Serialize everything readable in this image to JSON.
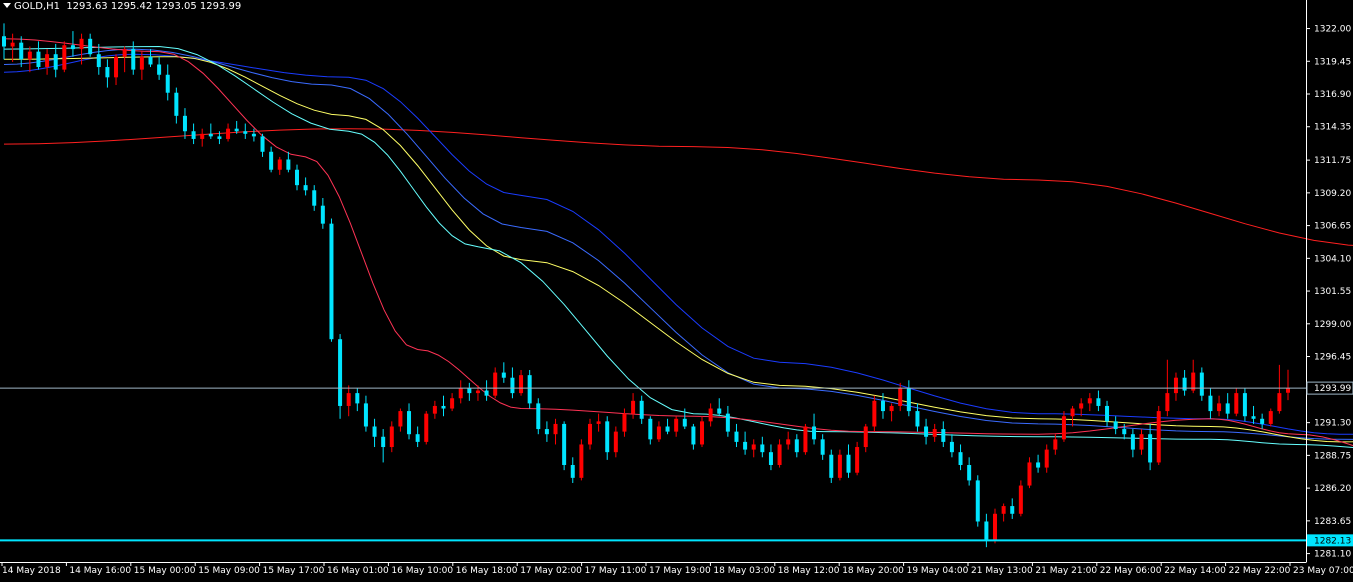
{
  "header": {
    "symbol": "GOLD,H1",
    "ohlc": "1293.63 1295.42 1293.05 1293.99"
  },
  "colors": {
    "background": "#000000",
    "bull": "#ff0000",
    "bear": "#00e5ff",
    "ma_red": "#ff2020",
    "ma_blue1": "#1a3cff",
    "ma_blue2": "#3a6bff",
    "ma_yellow": "#ffff66",
    "ma_cyan": "#66ffff",
    "ma_pink": "#ff3355",
    "current_line": "#9fb7c7",
    "hline": "#00e5ff"
  },
  "price_axis": {
    "ticks": [
      "1322.00",
      "1319.45",
      "1316.90",
      "1314.35",
      "1311.75",
      "1309.20",
      "1306.65",
      "1304.10",
      "1301.55",
      "1299.00",
      "1296.45",
      "1293.99",
      "1291.30",
      "1288.75",
      "1286.20",
      "1283.65",
      "1282.13",
      "1281.10"
    ],
    "current_label": "1293.99",
    "hline_label": "1282.13"
  },
  "time_axis": {
    "labels": [
      "14 May 2018",
      "14 May 16:00",
      "15 May 00:00",
      "15 May 09:00",
      "15 May 17:00",
      "16 May 01:00",
      "16 May 10:00",
      "16 May 18:00",
      "17 May 02:00",
      "17 May 11:00",
      "17 May 19:00",
      "18 May 03:00",
      "18 May 12:00",
      "18 May 20:00",
      "19 May 04:00",
      "21 May 13:00",
      "21 May 21:00",
      "22 May 06:00",
      "22 May 14:00",
      "22 May 22:00",
      "23 May 07:00"
    ]
  },
  "chart_data": {
    "type": "candlestick",
    "symbol": "GOLD",
    "timeframe": "H1",
    "ylim": [
      1280.6,
      1323.6
    ],
    "current_price": 1293.99,
    "horizontal_line": 1282.13,
    "candles": [
      [
        1321.4,
        1322.4,
        1319.6,
        1320.6
      ],
      [
        1320.6,
        1321.6,
        1319.4,
        1320.9
      ],
      [
        1320.9,
        1321.4,
        1319.0,
        1319.6
      ],
      [
        1319.6,
        1320.6,
        1318.6,
        1320.2
      ],
      [
        1320.2,
        1321.0,
        1318.8,
        1319.0
      ],
      [
        1319.0,
        1320.4,
        1318.4,
        1320.0
      ],
      [
        1320.0,
        1320.8,
        1318.2,
        1318.8
      ],
      [
        1318.8,
        1321.0,
        1318.6,
        1320.7
      ],
      [
        1320.7,
        1321.8,
        1319.8,
        1320.4
      ],
      [
        1320.4,
        1321.6,
        1319.2,
        1321.2
      ],
      [
        1321.2,
        1321.6,
        1319.8,
        1320.0
      ],
      [
        1320.0,
        1320.8,
        1318.4,
        1319.0
      ],
      [
        1319.0,
        1319.6,
        1317.4,
        1318.2
      ],
      [
        1318.2,
        1320.0,
        1317.6,
        1319.8
      ],
      [
        1319.8,
        1320.6,
        1318.6,
        1320.4
      ],
      [
        1320.4,
        1321.0,
        1318.4,
        1318.8
      ],
      [
        1318.8,
        1320.2,
        1318.0,
        1319.8
      ],
      [
        1319.8,
        1320.4,
        1319.0,
        1319.2
      ],
      [
        1319.2,
        1319.8,
        1318.0,
        1318.4
      ],
      [
        1318.4,
        1319.2,
        1316.4,
        1317.0
      ],
      [
        1317.0,
        1317.4,
        1314.6,
        1315.2
      ],
      [
        1315.2,
        1315.8,
        1313.4,
        1314.0
      ],
      [
        1314.0,
        1314.6,
        1313.0,
        1313.4
      ],
      [
        1313.4,
        1314.2,
        1312.8,
        1313.8
      ],
      [
        1313.8,
        1314.6,
        1313.4,
        1313.6
      ],
      [
        1313.6,
        1314.0,
        1313.0,
        1313.4
      ],
      [
        1313.4,
        1314.6,
        1313.2,
        1314.2
      ],
      [
        1314.2,
        1314.8,
        1313.8,
        1314.0
      ],
      [
        1314.0,
        1314.6,
        1313.4,
        1313.8
      ],
      [
        1313.8,
        1314.2,
        1313.2,
        1313.6
      ],
      [
        1313.6,
        1313.8,
        1312.0,
        1312.4
      ],
      [
        1312.4,
        1312.8,
        1310.8,
        1311.0
      ],
      [
        1311.0,
        1312.0,
        1310.6,
        1311.8
      ],
      [
        1311.8,
        1312.4,
        1310.8,
        1311.0
      ],
      [
        1311.0,
        1311.4,
        1309.4,
        1309.8
      ],
      [
        1309.8,
        1310.4,
        1309.0,
        1309.4
      ],
      [
        1309.4,
        1309.8,
        1307.8,
        1308.2
      ],
      [
        1308.2,
        1308.8,
        1306.4,
        1306.8
      ],
      [
        1306.8,
        1307.2,
        1297.6,
        1297.8
      ],
      [
        1297.8,
        1298.2,
        1291.6,
        1292.6
      ],
      [
        1292.6,
        1294.2,
        1291.8,
        1293.6
      ],
      [
        1293.6,
        1294.0,
        1292.2,
        1292.8
      ],
      [
        1292.8,
        1293.4,
        1290.6,
        1291.0
      ],
      [
        1291.0,
        1291.6,
        1289.4,
        1290.2
      ],
      [
        1290.2,
        1290.8,
        1288.2,
        1289.4
      ],
      [
        1289.4,
        1291.4,
        1289.0,
        1291.0
      ],
      [
        1291.0,
        1292.4,
        1290.6,
        1292.2
      ],
      [
        1292.2,
        1292.8,
        1290.0,
        1290.4
      ],
      [
        1290.4,
        1291.0,
        1289.4,
        1289.8
      ],
      [
        1289.8,
        1292.2,
        1289.6,
        1292.0
      ],
      [
        1292.0,
        1293.0,
        1291.6,
        1292.6
      ],
      [
        1292.6,
        1293.4,
        1291.8,
        1292.4
      ],
      [
        1292.4,
        1293.6,
        1292.2,
        1293.2
      ],
      [
        1293.2,
        1294.6,
        1292.8,
        1294.0
      ],
      [
        1294.0,
        1294.4,
        1293.0,
        1293.6
      ],
      [
        1293.6,
        1294.2,
        1293.0,
        1293.8
      ],
      [
        1293.8,
        1294.6,
        1293.0,
        1293.4
      ],
      [
        1293.4,
        1295.6,
        1293.2,
        1295.2
      ],
      [
        1295.2,
        1296.0,
        1294.4,
        1294.8
      ],
      [
        1294.8,
        1295.6,
        1293.2,
        1293.6
      ],
      [
        1293.6,
        1295.4,
        1293.4,
        1295.0
      ],
      [
        1295.0,
        1295.4,
        1292.4,
        1292.8
      ],
      [
        1292.8,
        1293.2,
        1290.4,
        1290.8
      ],
      [
        1290.8,
        1291.4,
        1289.8,
        1290.4
      ],
      [
        1290.4,
        1291.6,
        1289.6,
        1291.2
      ],
      [
        1291.2,
        1291.4,
        1287.6,
        1288.0
      ],
      [
        1288.0,
        1288.6,
        1286.6,
        1287.0
      ],
      [
        1287.0,
        1290.0,
        1286.8,
        1289.6
      ],
      [
        1289.6,
        1291.6,
        1289.2,
        1291.2
      ],
      [
        1291.2,
        1292.0,
        1290.6,
        1291.4
      ],
      [
        1291.4,
        1291.8,
        1288.4,
        1289.0
      ],
      [
        1289.0,
        1291.0,
        1288.6,
        1290.6
      ],
      [
        1290.6,
        1292.4,
        1290.2,
        1292.0
      ],
      [
        1292.0,
        1293.6,
        1291.6,
        1293.0
      ],
      [
        1293.0,
        1293.4,
        1291.2,
        1291.6
      ],
      [
        1291.6,
        1291.8,
        1289.6,
        1290.0
      ],
      [
        1290.0,
        1291.4,
        1289.8,
        1291.0
      ],
      [
        1291.0,
        1291.6,
        1290.4,
        1290.6
      ],
      [
        1290.6,
        1291.8,
        1290.2,
        1291.6
      ],
      [
        1291.6,
        1292.4,
        1290.8,
        1291.0
      ],
      [
        1291.0,
        1291.2,
        1289.2,
        1289.6
      ],
      [
        1289.6,
        1291.8,
        1289.4,
        1291.4
      ],
      [
        1291.4,
        1292.8,
        1291.0,
        1292.4
      ],
      [
        1292.4,
        1293.2,
        1291.8,
        1292.0
      ],
      [
        1292.0,
        1292.6,
        1290.2,
        1290.6
      ],
      [
        1290.6,
        1291.2,
        1289.4,
        1289.8
      ],
      [
        1289.8,
        1290.6,
        1288.8,
        1289.2
      ],
      [
        1289.2,
        1290.0,
        1288.6,
        1289.6
      ],
      [
        1289.6,
        1290.2,
        1288.6,
        1289.0
      ],
      [
        1289.0,
        1289.6,
        1287.6,
        1288.0
      ],
      [
        1288.0,
        1290.0,
        1287.8,
        1289.6
      ],
      [
        1289.6,
        1290.6,
        1289.2,
        1290.0
      ],
      [
        1290.0,
        1290.4,
        1288.6,
        1289.0
      ],
      [
        1289.0,
        1291.2,
        1288.8,
        1291.0
      ],
      [
        1291.0,
        1292.0,
        1289.6,
        1290.0
      ],
      [
        1290.0,
        1290.4,
        1288.4,
        1288.8
      ],
      [
        1288.8,
        1289.2,
        1286.6,
        1287.0
      ],
      [
        1287.0,
        1289.2,
        1286.8,
        1288.8
      ],
      [
        1288.8,
        1289.6,
        1287.0,
        1287.4
      ],
      [
        1287.4,
        1289.8,
        1287.2,
        1289.4
      ],
      [
        1289.4,
        1291.2,
        1289.0,
        1291.0
      ],
      [
        1291.0,
        1293.4,
        1290.6,
        1293.0
      ],
      [
        1293.0,
        1293.6,
        1291.6,
        1292.2
      ],
      [
        1292.2,
        1292.8,
        1291.4,
        1292.6
      ],
      [
        1292.6,
        1294.4,
        1292.2,
        1294.0
      ],
      [
        1294.0,
        1294.6,
        1291.8,
        1292.2
      ],
      [
        1292.2,
        1292.8,
        1290.6,
        1291.0
      ],
      [
        1291.0,
        1291.6,
        1289.6,
        1290.2
      ],
      [
        1290.2,
        1291.2,
        1289.8,
        1290.8
      ],
      [
        1290.8,
        1291.4,
        1289.4,
        1289.8
      ],
      [
        1289.8,
        1290.4,
        1288.6,
        1289.0
      ],
      [
        1289.0,
        1289.6,
        1287.6,
        1288.0
      ],
      [
        1288.0,
        1288.6,
        1286.4,
        1286.8
      ],
      [
        1286.8,
        1287.2,
        1283.2,
        1283.6
      ],
      [
        1283.6,
        1284.2,
        1281.6,
        1282.2
      ],
      [
        1282.2,
        1284.6,
        1281.9,
        1284.2
      ],
      [
        1284.2,
        1285.0,
        1283.6,
        1284.8
      ],
      [
        1284.8,
        1285.4,
        1283.8,
        1284.2
      ],
      [
        1284.2,
        1286.8,
        1284.0,
        1286.4
      ],
      [
        1286.4,
        1288.6,
        1286.2,
        1288.2
      ],
      [
        1288.2,
        1288.8,
        1287.4,
        1287.8
      ],
      [
        1287.8,
        1289.6,
        1287.4,
        1289.2
      ],
      [
        1289.2,
        1290.4,
        1288.8,
        1290.0
      ],
      [
        1290.0,
        1292.2,
        1289.8,
        1291.8
      ],
      [
        1291.8,
        1292.6,
        1291.0,
        1292.4
      ],
      [
        1292.4,
        1293.2,
        1291.8,
        1292.8
      ],
      [
        1292.8,
        1293.6,
        1292.2,
        1293.2
      ],
      [
        1293.2,
        1293.8,
        1292.2,
        1292.6
      ],
      [
        1292.6,
        1293.0,
        1291.0,
        1291.4
      ],
      [
        1291.4,
        1291.8,
        1290.4,
        1290.8
      ],
      [
        1290.8,
        1291.2,
        1290.0,
        1290.4
      ],
      [
        1290.4,
        1290.8,
        1288.6,
        1289.2
      ],
      [
        1289.2,
        1290.8,
        1288.8,
        1290.4
      ],
      [
        1290.4,
        1291.2,
        1287.6,
        1288.2
      ],
      [
        1288.2,
        1292.6,
        1288.0,
        1292.2
      ],
      [
        1292.2,
        1296.2,
        1291.8,
        1293.6
      ],
      [
        1293.6,
        1295.2,
        1293.0,
        1294.8
      ],
      [
        1294.8,
        1295.4,
        1293.4,
        1293.8
      ],
      [
        1293.8,
        1296.2,
        1293.6,
        1295.2
      ],
      [
        1295.2,
        1295.6,
        1293.0,
        1293.4
      ],
      [
        1293.4,
        1294.0,
        1291.6,
        1292.2
      ],
      [
        1292.2,
        1293.4,
        1291.8,
        1292.8
      ],
      [
        1292.8,
        1293.6,
        1291.6,
        1292.0
      ],
      [
        1292.0,
        1294.0,
        1291.8,
        1293.6
      ],
      [
        1293.6,
        1294.0,
        1291.4,
        1291.8
      ],
      [
        1291.8,
        1292.6,
        1291.2,
        1291.6
      ],
      [
        1291.6,
        1292.0,
        1290.8,
        1291.2
      ],
      [
        1291.2,
        1292.4,
        1291.0,
        1292.2
      ],
      [
        1292.2,
        1295.8,
        1292.0,
        1293.6
      ],
      [
        1293.63,
        1295.42,
        1293.05,
        1293.99
      ]
    ],
    "ma_lines": [
      {
        "color": "ma_red",
        "values": [
          [
            0,
            1313.0
          ],
          [
            40,
            1314.2
          ],
          [
            80,
            1312.8
          ],
          [
            120,
            1310.2
          ],
          [
            160,
            1305.0
          ],
          [
            200,
            1301.0
          ]
        ]
      },
      {
        "color": "ma_blue1",
        "values": [
          [
            0,
            1318.6
          ],
          [
            15,
            1320.0
          ],
          [
            40,
            1318.2
          ],
          [
            60,
            1309.0
          ],
          [
            90,
            1296.0
          ],
          [
            120,
            1292.0
          ],
          [
            140,
            1291.6
          ],
          [
            155,
            1290.4
          ],
          [
            170,
            1290.2
          ],
          [
            190,
            1290.4
          ],
          [
            200,
            1291.0
          ]
        ]
      },
      {
        "color": "ma_blue2",
        "values": [
          [
            0,
            1319.2
          ],
          [
            15,
            1320.4
          ],
          [
            38,
            1317.6
          ],
          [
            60,
            1306.5
          ],
          [
            90,
            1294.0
          ],
          [
            120,
            1291.2
          ],
          [
            140,
            1290.6
          ],
          [
            155,
            1290.0
          ],
          [
            170,
            1289.8
          ],
          [
            190,
            1290.0
          ],
          [
            200,
            1290.6
          ]
        ]
      },
      {
        "color": "ma_yellow",
        "values": [
          [
            0,
            1319.6
          ],
          [
            20,
            1319.8
          ],
          [
            40,
            1315.2
          ],
          [
            60,
            1304.0
          ],
          [
            90,
            1294.2
          ],
          [
            120,
            1291.6
          ],
          [
            140,
            1291.0
          ],
          [
            155,
            1289.8
          ],
          [
            170,
            1290.2
          ],
          [
            190,
            1291.2
          ],
          [
            200,
            1291.6
          ]
        ]
      },
      {
        "color": "ma_cyan",
        "values": [
          [
            0,
            1320.4
          ],
          [
            18,
            1320.6
          ],
          [
            40,
            1314.0
          ],
          [
            55,
            1305.0
          ],
          [
            80,
            1292.0
          ],
          [
            95,
            1290.6
          ],
          [
            120,
            1290.2
          ],
          [
            140,
            1290.0
          ],
          [
            150,
            1289.6
          ],
          [
            165,
            1289.0
          ],
          [
            180,
            1290.2
          ],
          [
            200,
            1291.0
          ]
        ]
      },
      {
        "color": "ma_pink",
        "values": [
          [
            0,
            1321.2
          ],
          [
            18,
            1320.2
          ],
          [
            35,
            1312.0
          ],
          [
            48,
            1297.0
          ],
          [
            60,
            1292.4
          ],
          [
            80,
            1291.8
          ],
          [
            100,
            1290.6
          ],
          [
            120,
            1290.4
          ],
          [
            140,
            1291.6
          ],
          [
            150,
            1290.4
          ],
          [
            165,
            1288.2
          ],
          [
            180,
            1289.4
          ],
          [
            190,
            1292.6
          ],
          [
            200,
            1293.2
          ]
        ]
      }
    ]
  }
}
